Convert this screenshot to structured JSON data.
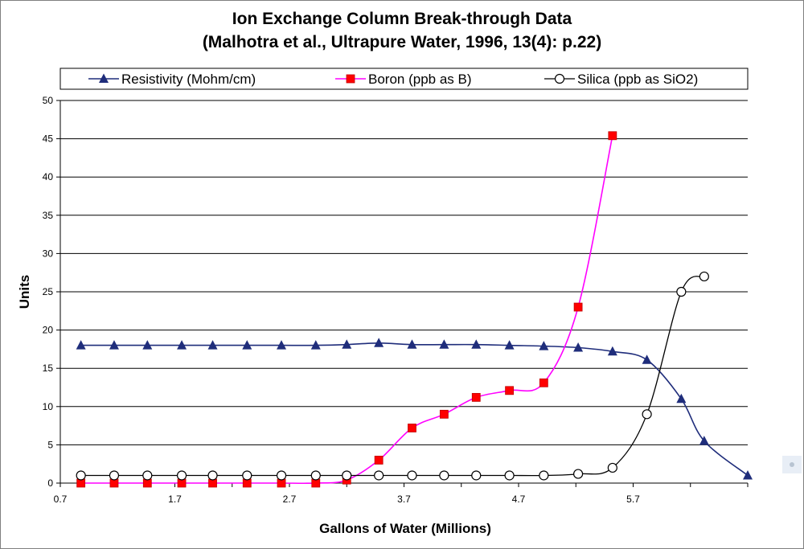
{
  "chart_data": {
    "type": "line",
    "title": [
      "Ion Exchange Column Break-through Data",
      "(Malhotra et al., Ultrapure Water, 1996, 13(4): p.22)"
    ],
    "xlabel": "Gallons of Water (Millions)",
    "ylabel": "Units",
    "xlim": [
      0.7,
      6.7
    ],
    "ylim": [
      0,
      50
    ],
    "x_ticks": [
      "0.7",
      "1.7",
      "2.7",
      "3.7",
      "4.7",
      "5.7"
    ],
    "y_ticks": [
      "0",
      "5",
      "10",
      "15",
      "20",
      "25",
      "30",
      "35",
      "40",
      "45",
      "50"
    ],
    "grid": "horizontal",
    "legend_position": "top",
    "series": [
      {
        "name": "Resistivity (Mohm/cm)",
        "color": "#1f2d7b",
        "marker": "triangle",
        "x": [
          0.88,
          1.17,
          1.46,
          1.76,
          2.03,
          2.33,
          2.63,
          2.93,
          3.2,
          3.48,
          3.77,
          4.05,
          4.33,
          4.62,
          4.92,
          5.22,
          5.52,
          5.82,
          6.12,
          6.32,
          6.7
        ],
        "y": [
          18,
          18,
          18,
          18,
          18,
          18,
          18,
          18,
          18.1,
          18.3,
          18.1,
          18.1,
          18.1,
          18,
          17.9,
          17.7,
          17.2,
          16.1,
          11,
          5.5,
          1
        ]
      },
      {
        "name": "Boron (ppb as B)",
        "color": "#ff00ff",
        "marker_color": "#ff0000",
        "marker": "square",
        "x": [
          0.88,
          1.17,
          1.46,
          1.76,
          2.03,
          2.33,
          2.63,
          2.93,
          3.2,
          3.48,
          3.77,
          4.05,
          4.33,
          4.62,
          4.92,
          5.22,
          5.52
        ],
        "y": [
          0,
          0,
          0,
          0,
          0,
          0,
          0,
          0,
          0.4,
          3,
          7.2,
          9,
          11.2,
          12.1,
          13.1,
          23,
          45.4
        ]
      },
      {
        "name": "Silica (ppb as SiO2)",
        "color": "#000000",
        "marker": "open-circle",
        "x": [
          0.88,
          1.17,
          1.46,
          1.76,
          2.03,
          2.33,
          2.63,
          2.93,
          3.2,
          3.48,
          3.77,
          4.05,
          4.33,
          4.62,
          4.92,
          5.22,
          5.52,
          5.82,
          6.12,
          6.32
        ],
        "y": [
          1,
          1,
          1,
          1,
          1,
          1,
          1,
          1,
          1,
          1,
          1,
          1,
          1,
          1,
          1,
          1.2,
          2,
          9,
          25,
          27
        ]
      }
    ]
  }
}
